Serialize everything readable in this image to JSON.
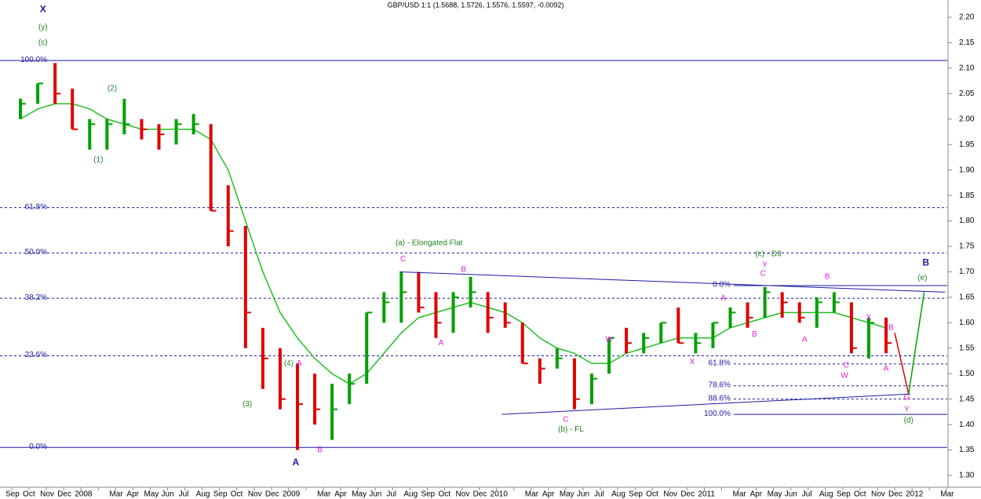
{
  "chart_data": {
    "type": "ohlc",
    "title": "GBP/USD 1:1 (1.5688, 1.5726, 1.5576, 1.5597, -0.0092)",
    "categories": [
      "Sep",
      "Oct",
      "Nov",
      "Dec",
      "2008",
      null,
      "Mar",
      "Apr",
      "May",
      "Jun",
      "Jul",
      "Aug",
      "Sep",
      "Oct",
      "Nov",
      "Dec",
      "2009",
      null,
      "Mar",
      "Apr",
      "May",
      "Jun",
      "Jul",
      "Aug",
      "Sep",
      "Oct",
      "Nov",
      "Dec",
      "2010",
      null,
      "Mar",
      "Apr",
      "May",
      "Jun",
      "Jul",
      "Aug",
      "Sep",
      "Oct",
      "Nov",
      "Dec",
      "2011",
      null,
      "Mar",
      "Apr",
      "May",
      "Jun",
      "Jul",
      "Aug",
      "Sep",
      "Oct",
      "Nov",
      "Dec",
      "2012",
      null,
      "Mar"
    ],
    "high": [
      2.04,
      2.07,
      2.11,
      2.06,
      2.0,
      2.0,
      2.04,
      2.0,
      1.99,
      2.0,
      2.01,
      1.99,
      1.87,
      1.79,
      1.59,
      1.55,
      1.52,
      1.5,
      1.48,
      1.5,
      1.62,
      1.66,
      1.7,
      1.7,
      1.66,
      1.66,
      1.69,
      1.66,
      1.64,
      1.6,
      1.53,
      1.55,
      1.53,
      1.5,
      1.57,
      1.59,
      1.58,
      1.6,
      1.63,
      1.58,
      1.6,
      1.63,
      1.64,
      1.67,
      1.66,
      1.64,
      1.65,
      1.66,
      1.64,
      1.61,
      1.61,
      null,
      null,
      null,
      null
    ],
    "low": [
      2.0,
      2.03,
      2.03,
      1.98,
      1.94,
      1.94,
      1.97,
      1.96,
      1.94,
      1.95,
      1.97,
      1.82,
      1.75,
      1.55,
      1.47,
      1.43,
      1.35,
      1.4,
      1.37,
      1.44,
      1.48,
      1.6,
      1.6,
      1.62,
      1.57,
      1.58,
      1.63,
      1.58,
      1.59,
      1.52,
      1.48,
      1.51,
      1.43,
      1.44,
      1.5,
      1.54,
      1.54,
      1.56,
      1.56,
      1.54,
      1.55,
      1.59,
      1.59,
      1.61,
      1.61,
      1.6,
      1.59,
      1.62,
      1.54,
      1.53,
      1.54,
      null,
      null,
      null,
      null
    ],
    "close": [
      2.03,
      2.07,
      2.05,
      1.98,
      1.99,
      1.99,
      1.99,
      1.98,
      1.97,
      1.99,
      1.99,
      1.82,
      1.78,
      1.62,
      1.53,
      1.45,
      1.44,
      1.43,
      1.43,
      1.48,
      1.62,
      1.64,
      1.66,
      1.63,
      1.6,
      1.65,
      1.66,
      1.61,
      1.6,
      1.52,
      1.51,
      1.53,
      1.45,
      1.49,
      1.57,
      1.56,
      1.57,
      1.6,
      1.56,
      1.56,
      1.6,
      1.62,
      1.61,
      1.66,
      1.64,
      1.61,
      1.64,
      1.64,
      1.55,
      1.6,
      1.56,
      null,
      null,
      null,
      null
    ],
    "up_color": "#00a000",
    "down_color": "#e00000",
    "ma": {
      "color": "#22c022",
      "values": [
        2.0,
        2.02,
        2.03,
        2.03,
        2.02,
        2.0,
        1.99,
        1.98,
        1.98,
        1.98,
        1.98,
        1.96,
        1.9,
        1.8,
        1.7,
        1.62,
        1.57,
        1.53,
        1.5,
        1.48,
        1.5,
        1.54,
        1.58,
        1.61,
        1.62,
        1.63,
        1.64,
        1.63,
        1.62,
        1.6,
        1.57,
        1.55,
        1.54,
        1.52,
        1.52,
        1.54,
        1.55,
        1.56,
        1.57,
        1.57,
        1.57,
        1.59,
        1.6,
        1.61,
        1.62,
        1.62,
        1.62,
        1.62,
        1.61,
        1.6,
        1.59,
        null,
        null,
        null,
        null
      ]
    },
    "ylim": [
      1.3,
      2.2
    ],
    "yticks": [
      {
        "value": 1.3,
        "label": "1.30"
      },
      {
        "value": 1.35,
        "label": "1.35"
      },
      {
        "value": 1.4,
        "label": "1.40"
      },
      {
        "value": 1.45,
        "label": "1.45"
      },
      {
        "value": 1.5,
        "label": "1.50"
      },
      {
        "value": 1.55,
        "label": "1.55"
      },
      {
        "value": 1.6,
        "label": "1.60"
      },
      {
        "value": 1.65,
        "label": "1.65"
      },
      {
        "value": 1.7,
        "label": "1.70"
      },
      {
        "value": 1.75,
        "label": "1.75"
      },
      {
        "value": 1.8,
        "label": "1.80"
      },
      {
        "value": 1.85,
        "label": "1.85"
      },
      {
        "value": 1.9,
        "label": "1.90"
      },
      {
        "value": 1.95,
        "label": "1.95"
      },
      {
        "value": 2.0,
        "label": "2.00"
      },
      {
        "value": 2.05,
        "label": "2.05"
      },
      {
        "value": 2.1,
        "label": "2.10"
      },
      {
        "value": 2.15,
        "label": "2.15"
      },
      {
        "value": 2.2,
        "label": "2.20"
      }
    ],
    "fib_left": {
      "color": "#1a1aa8",
      "levels": [
        {
          "price": 2.115,
          "percent": 100,
          "label": "100.0%",
          "style": "solid"
        },
        {
          "price": 1.826,
          "percent": 61.8,
          "label": "61.8%",
          "style": "dashed"
        },
        {
          "price": 1.737,
          "percent": 50,
          "label": "50.0%",
          "style": "dashed"
        },
        {
          "price": 1.648,
          "percent": 38.2,
          "label": "38.2%",
          "style": "dashed"
        },
        {
          "price": 1.535,
          "percent": 23.6,
          "label": "23.6%",
          "style": "dashed"
        },
        {
          "price": 1.355,
          "percent": 0,
          "label": "0.0%",
          "style": "solid"
        }
      ]
    },
    "fib_right": {
      "color": "#1a1aa8",
      "x_start": 41.7,
      "levels": [
        {
          "price": 1.673,
          "percent": 0,
          "label": "0.0%",
          "style": "solid"
        },
        {
          "price": 1.519,
          "percent": 61.8,
          "label": "61.8%",
          "style": "dashed"
        },
        {
          "price": 1.476,
          "percent": 78.6,
          "label": "78.6%",
          "style": "dashed"
        },
        {
          "price": 1.45,
          "percent": 88.6,
          "label": "88.6%",
          "style": "dashed"
        },
        {
          "price": 1.42,
          "percent": 100,
          "label": "100.0%",
          "style": "solid"
        }
      ]
    },
    "trendlines": [
      {
        "x": [
          22.4,
          53.9
        ],
        "values": [
          1.7,
          1.66
        ],
        "color": "#1a1aa8"
      },
      {
        "x": [
          28.3,
          51.9
        ],
        "values": [
          1.42,
          1.46
        ],
        "color": "#1a1aa8"
      }
    ],
    "projection": {
      "x": [
        51.0,
        51.8,
        52.7
      ],
      "values": [
        1.58,
        1.46,
        1.66
      ],
      "colors": [
        "#e00000",
        "#00a000"
      ]
    },
    "annotations": [
      {
        "text": "X",
        "x": 1.8,
        "y": 2.215,
        "color": "#1a1aa8",
        "large": true
      },
      {
        "text": "(y)",
        "x": 1.8,
        "y": 2.18,
        "color": "#208020"
      },
      {
        "text": "(c)",
        "x": 1.8,
        "y": 2.15,
        "color": "#208020"
      },
      {
        "text": "(2)",
        "x": 5.8,
        "y": 2.06,
        "color": "#208020"
      },
      {
        "text": "(1)",
        "x": 5.0,
        "y": 1.92,
        "color": "#208020"
      },
      {
        "text": "(3)",
        "x": 13.6,
        "y": 1.44,
        "color": "#208020"
      },
      {
        "text": "(4)",
        "x": 16.0,
        "y": 1.52,
        "color": "#208020"
      },
      {
        "text": "A",
        "x": 16.6,
        "y": 1.52,
        "color": "#e020e0"
      },
      {
        "text": "A",
        "x": 16.4,
        "y": 1.325,
        "color": "#1a1aa8",
        "large": true
      },
      {
        "text": "B",
        "x": 17.8,
        "y": 1.35,
        "color": "#e020e0"
      },
      {
        "text": "(a) - Elongated Flat",
        "x": 24.1,
        "y": 1.756,
        "color": "#208020"
      },
      {
        "text": "C",
        "x": 22.6,
        "y": 1.725,
        "color": "#e020e0"
      },
      {
        "text": "B",
        "x": 26.1,
        "y": 1.704,
        "color": "#e020e0"
      },
      {
        "text": "A",
        "x": 24.8,
        "y": 1.56,
        "color": "#e020e0"
      },
      {
        "text": "W",
        "x": 34.5,
        "y": 1.567,
        "color": "#e020e0"
      },
      {
        "text": "C",
        "x": 32.0,
        "y": 1.41,
        "color": "#e020e0"
      },
      {
        "text": "(b) - FL",
        "x": 32.3,
        "y": 1.39,
        "color": "#208020"
      },
      {
        "text": "X",
        "x": 39.3,
        "y": 1.523,
        "color": "#e020e0"
      },
      {
        "text": "A",
        "x": 41.1,
        "y": 1.648,
        "color": "#e020e0"
      },
      {
        "text": "B",
        "x": 42.9,
        "y": 1.577,
        "color": "#e020e0"
      },
      {
        "text": "(c) - D3",
        "x": 43.7,
        "y": 1.735,
        "color": "#208020"
      },
      {
        "text": "Y",
        "x": 43.5,
        "y": 1.713,
        "color": "#e020e0"
      },
      {
        "text": "C",
        "x": 43.4,
        "y": 1.696,
        "color": "#e020e0"
      },
      {
        "text": "B",
        "x": 47.1,
        "y": 1.69,
        "color": "#e020e0"
      },
      {
        "text": "A",
        "x": 45.8,
        "y": 1.567,
        "color": "#e020e0"
      },
      {
        "text": "C",
        "x": 48.2,
        "y": 1.516,
        "color": "#e020e0"
      },
      {
        "text": "W",
        "x": 48.1,
        "y": 1.496,
        "color": "#e020e0"
      },
      {
        "text": "X",
        "x": 49.5,
        "y": 1.61,
        "color": "#e020e0"
      },
      {
        "text": "B",
        "x": 50.8,
        "y": 1.59,
        "color": "#e020e0"
      },
      {
        "text": "A",
        "x": 50.5,
        "y": 1.51,
        "color": "#e020e0"
      },
      {
        "text": "G",
        "x": 51.7,
        "y": 1.453,
        "color": "#e020e0"
      },
      {
        "text": "Y",
        "x": 51.7,
        "y": 1.43,
        "color": "#e020e0"
      },
      {
        "text": "(d)",
        "x": 51.8,
        "y": 1.408,
        "color": "#208020"
      },
      {
        "text": "(e)",
        "x": 52.6,
        "y": 1.688,
        "color": "#208020"
      },
      {
        "text": "B",
        "x": 52.8,
        "y": 1.717,
        "color": "#1a1aa8",
        "large": true
      }
    ]
  }
}
